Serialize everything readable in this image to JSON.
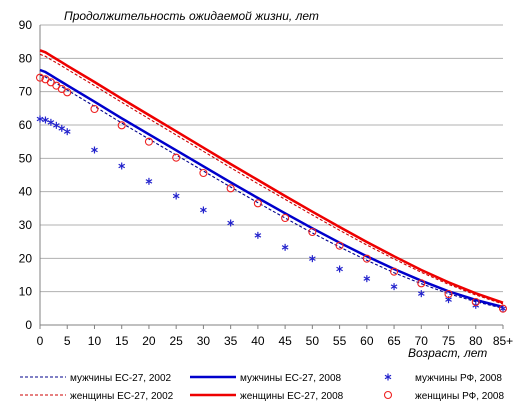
{
  "chart_data": {
    "type": "line",
    "title": "Продолжительность ожидаемой жизни, лет",
    "xlabel": "Возраст, лет",
    "ylabel": "",
    "ylim": [
      0,
      90
    ],
    "yticks": [
      "0",
      "10",
      "20",
      "30",
      "40",
      "50",
      "60",
      "70",
      "80",
      "90"
    ],
    "x": [
      0,
      1,
      2,
      3,
      4,
      5,
      10,
      15,
      20,
      25,
      30,
      35,
      40,
      45,
      50,
      55,
      60,
      65,
      70,
      75,
      80,
      85
    ],
    "xtick_labels": [
      "0",
      "5",
      "10",
      "15",
      "20",
      "25",
      "30",
      "35",
      "40",
      "45",
      "50",
      "55",
      "60",
      "65",
      "70",
      "75",
      "80",
      "85+"
    ],
    "grid": true,
    "legend_position": "bottom",
    "colors": {
      "men": "#0000cc",
      "women": "#ee0000",
      "ru_men": "#2222cc",
      "ru_women": "#ee2222",
      "grid": "#b0b0b0",
      "axis": "#808080"
    },
    "series": [
      {
        "name": "мужчины ЕС-27, 2002",
        "style": "dashed",
        "color": "#00008b",
        "values": [
          75.0,
          74.4,
          73.4,
          72.5,
          71.5,
          70.5,
          65.6,
          60.6,
          55.8,
          51.0,
          46.2,
          41.4,
          36.7,
          32.1,
          27.6,
          23.4,
          19.4,
          15.7,
          12.4,
          9.4,
          7.0,
          5.0
        ]
      },
      {
        "name": "мужчины ЕС-27, 2008",
        "style": "solid",
        "color": "#0000cc",
        "values": [
          76.5,
          75.9,
          74.9,
          73.9,
          72.9,
          71.9,
          67.0,
          62.0,
          57.2,
          52.4,
          47.6,
          42.8,
          38.1,
          33.5,
          29.0,
          24.7,
          20.6,
          16.8,
          13.3,
          10.1,
          7.5,
          5.4
        ]
      },
      {
        "name": "женщины ЕС-27, 2002",
        "style": "dashed",
        "color": "#cc0000",
        "values": [
          81.2,
          80.6,
          79.6,
          78.7,
          77.7,
          76.7,
          71.8,
          66.8,
          61.9,
          57.0,
          52.1,
          47.2,
          42.4,
          37.7,
          33.0,
          28.4,
          24.0,
          19.8,
          15.8,
          12.2,
          9.0,
          6.3
        ]
      },
      {
        "name": "женщины ЕС-27, 2008",
        "style": "solid",
        "color": "#ee0000",
        "values": [
          82.4,
          81.8,
          80.8,
          79.8,
          78.8,
          77.8,
          72.9,
          67.9,
          63.0,
          58.1,
          53.2,
          48.3,
          43.5,
          38.7,
          34.0,
          29.4,
          24.9,
          20.6,
          16.5,
          12.8,
          9.5,
          6.7
        ]
      },
      {
        "name": "мужчины РФ, 2008",
        "style": "marker-star",
        "color": "#2222cc",
        "values": [
          61.8,
          61.5,
          60.8,
          59.9,
          59.0,
          58.0,
          52.5,
          47.7,
          43.1,
          38.7,
          34.5,
          30.6,
          26.9,
          23.3,
          19.9,
          16.8,
          13.9,
          11.5,
          9.4,
          7.6,
          5.9,
          4.9
        ]
      },
      {
        "name": "женщины РФ, 2008",
        "style": "marker-circle",
        "color": "#ee2222",
        "values": [
          74.2,
          73.7,
          72.8,
          71.8,
          70.8,
          69.8,
          64.8,
          59.9,
          55.0,
          50.2,
          45.6,
          41.0,
          36.5,
          32.1,
          27.9,
          23.8,
          19.9,
          16.0,
          12.5,
          9.3,
          6.9,
          4.9
        ]
      }
    ]
  }
}
